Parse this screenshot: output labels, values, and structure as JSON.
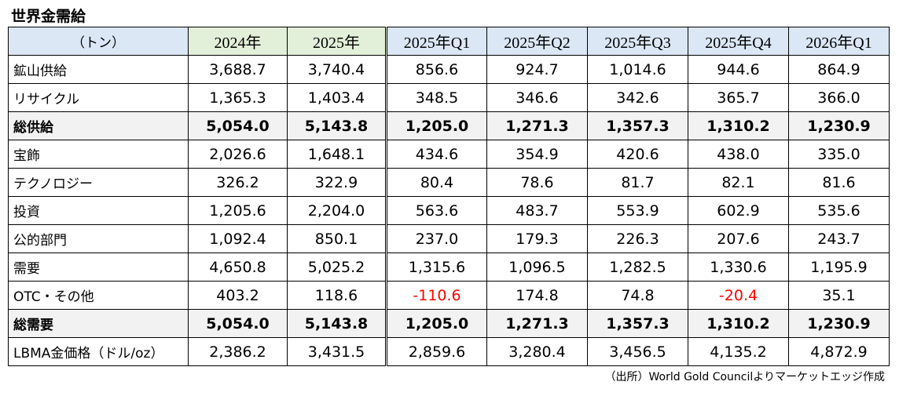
{
  "title": "世界金需給",
  "header": {
    "unit": "（トン）",
    "columns": [
      "2024年",
      "2025年",
      "2025年Q1",
      "2025年Q2",
      "2025年Q3",
      "2025年Q4",
      "2026年Q1"
    ]
  },
  "rows": [
    {
      "label": "鉱山供給",
      "bold": false,
      "values": [
        "3,688.7",
        "3,740.4",
        "856.6",
        "924.7",
        "1,014.6",
        "944.6",
        "864.9"
      ]
    },
    {
      "label": "リサイクル",
      "bold": false,
      "values": [
        "1,365.3",
        "1,403.4",
        "348.5",
        "346.6",
        "342.6",
        "365.7",
        "366.0"
      ]
    },
    {
      "label": "総供給",
      "bold": true,
      "values": [
        "5,054.0",
        "5,143.8",
        "1,205.0",
        "1,271.3",
        "1,357.3",
        "1,310.2",
        "1,230.9"
      ]
    },
    {
      "label": "宝飾",
      "bold": false,
      "values": [
        "2,026.6",
        "1,648.1",
        "434.6",
        "354.9",
        "420.6",
        "438.0",
        "335.0"
      ]
    },
    {
      "label": "テクノロジー",
      "bold": false,
      "values": [
        "326.2",
        "322.9",
        "80.4",
        "78.6",
        "81.7",
        "82.1",
        "81.6"
      ]
    },
    {
      "label": "投資",
      "bold": false,
      "values": [
        "1,205.6",
        "2,204.0",
        "563.6",
        "483.7",
        "553.9",
        "602.9",
        "535.6"
      ]
    },
    {
      "label": "公的部門",
      "bold": false,
      "values": [
        "1,092.4",
        "850.1",
        "237.0",
        "179.3",
        "226.3",
        "207.6",
        "243.7"
      ]
    },
    {
      "label": "需要",
      "bold": false,
      "values": [
        "4,650.8",
        "5,025.2",
        "1,315.6",
        "1,096.5",
        "1,282.5",
        "1,330.6",
        "1,195.9"
      ]
    },
    {
      "label": "OTC・その他",
      "bold": false,
      "values": [
        "403.2",
        "118.6",
        "-110.6",
        "174.8",
        "74.8",
        "-20.4",
        "35.1"
      ]
    },
    {
      "label": "総需要",
      "bold": true,
      "values": [
        "5,054.0",
        "5,143.8",
        "1,205.0",
        "1,271.3",
        "1,357.3",
        "1,310.2",
        "1,230.9"
      ]
    },
    {
      "label": "LBMA金価格（ドル/oz）",
      "bold": false,
      "values": [
        "2,386.2",
        "3,431.5",
        "2,859.6",
        "3,280.4",
        "3,456.5",
        "4,135.2",
        "4,872.9"
      ]
    }
  ],
  "source": "（出所）World Gold Councilよりマーケットエッジ作成",
  "colors": {
    "negative": "#ff0000",
    "header_year_bg": "#e2efd9",
    "header_quarter_bg": "#dbe7f5",
    "bold_row_bg": "#f2f2f2"
  }
}
